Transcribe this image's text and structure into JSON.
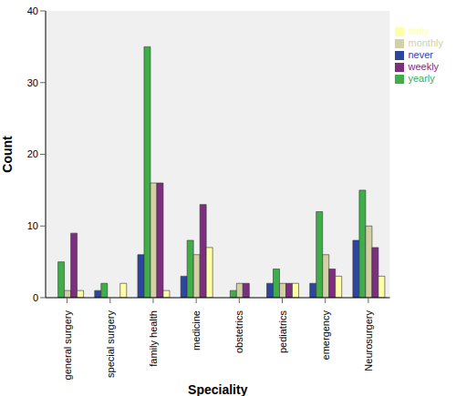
{
  "chart_data": {
    "type": "bar",
    "x_label": "Speciality",
    "y_label": "Count",
    "categories": [
      "general surgery",
      "special surgery",
      "family health",
      "medicine",
      "obstetrics",
      "pediatrics",
      "emergency",
      "Neurosurgery"
    ],
    "series": [
      {
        "name": "never",
        "color": "#2c46a0",
        "values": [
          0,
          1,
          6,
          3,
          0,
          2,
          2,
          8
        ]
      },
      {
        "name": "yearly",
        "color": "#3fae49",
        "values": [
          5,
          2,
          35,
          8,
          1,
          4,
          12,
          15
        ]
      },
      {
        "name": "monthly",
        "color": "#d4d0a6",
        "values": [
          1,
          0,
          16,
          6,
          2,
          2,
          6,
          10
        ]
      },
      {
        "name": "weekly",
        "color": "#7c2f7e",
        "values": [
          9,
          0,
          16,
          13,
          2,
          2,
          4,
          7
        ]
      },
      {
        "name": "daily",
        "color": "#ffffa8",
        "values": [
          1,
          2,
          1,
          7,
          0,
          2,
          3,
          3
        ]
      }
    ],
    "ylim": [
      0,
      40
    ],
    "yticks": [
      0,
      10,
      20,
      30,
      40
    ],
    "grid": false,
    "legend": "upper right"
  }
}
